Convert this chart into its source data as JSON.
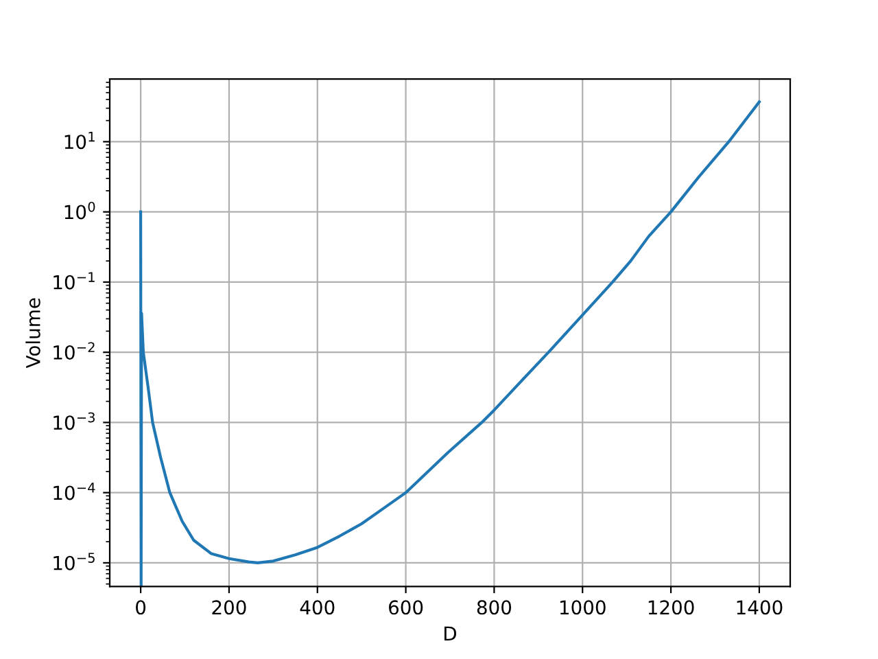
{
  "chart_data": {
    "type": "line",
    "xlabel": "D",
    "ylabel": "Volume",
    "color": "#1f77b4",
    "x": [
      0,
      1,
      2,
      6,
      17,
      27,
      45,
      66,
      94,
      120,
      160,
      200,
      245,
      265,
      300,
      350,
      400,
      450,
      500,
      550,
      600,
      695,
      772,
      800,
      860,
      923,
      1000,
      1068,
      1109,
      1150,
      1200,
      1264,
      1331,
      1400
    ],
    "values": [
      1,
      4.6e-06,
      0.036,
      0.01,
      0.0031,
      0.001,
      0.00032,
      0.0001,
      3.9e-05,
      2.1e-05,
      1.35e-05,
      1.15e-05,
      1.03e-05,
      1e-05,
      1.06e-05,
      1.3e-05,
      1.66e-05,
      2.4e-05,
      3.6e-05,
      6e-05,
      0.0001,
      0.00037,
      0.001,
      0.0015,
      0.0038,
      0.01,
      0.034,
      0.1,
      0.2,
      0.45,
      1,
      3.2,
      10,
      37
    ],
    "log": true,
    "grid": true,
    "xlim": [
      -70,
      1470
    ],
    "xticks": [
      0,
      200,
      400,
      600,
      800,
      1000,
      1200,
      1400
    ],
    "ylim": [
      4.6e-06,
      78
    ],
    "yticks": [
      {
        "value": 1e-05,
        "label": "10$^{−5}$"
      },
      {
        "value": 0.0001,
        "label": "10$^{−4}$"
      },
      {
        "value": 0.001,
        "label": "10$^{−3}$"
      },
      {
        "value": 0.01,
        "label": "10$^{−2}$"
      },
      {
        "value": 0.1,
        "label": "10$^{−1}$"
      },
      {
        "value": 1,
        "label": "10$^{0}$"
      },
      {
        "value": 10,
        "label": "10$^{1}$"
      }
    ]
  }
}
